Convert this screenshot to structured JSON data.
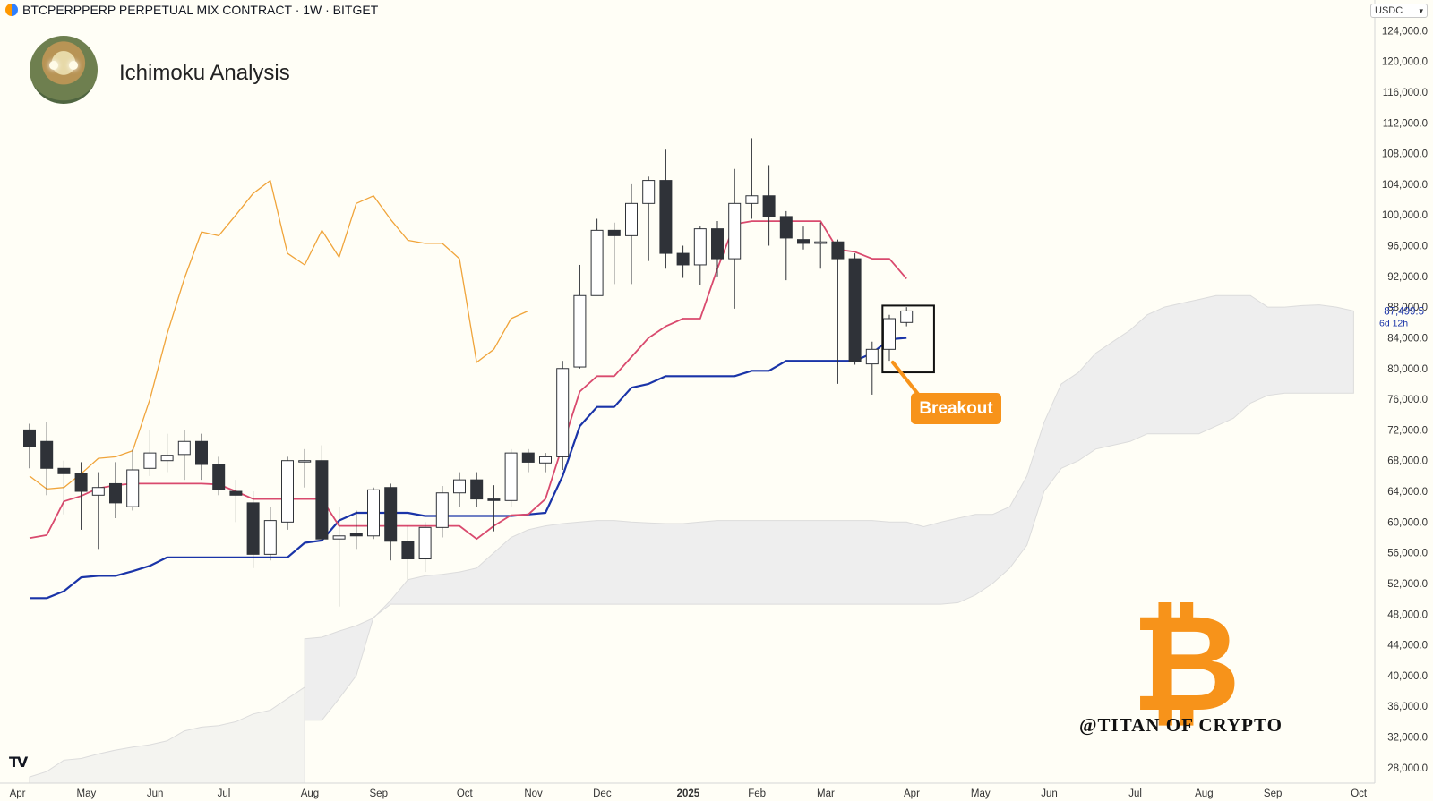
{
  "header": {
    "symbol_line": "BTCPERPPERP PERPETUAL MIX CONTRACT · 1W · BITGET",
    "chart_title": "Ichimoku Analysis",
    "currency": "USDC"
  },
  "annotations": {
    "breakout_label": "Breakout",
    "watermark": "@TITAN OF CRYPTO",
    "tradingview_logo": "TV",
    "last_price": "87,499.5",
    "countdown": "6d 12h"
  },
  "colors": {
    "background": "#fffef6",
    "tenkan": "#d94a6e",
    "kijun": "#1a34a8",
    "chikou": "#f0a43a",
    "cloud": "#eeeeee",
    "candle_up": "#ffffff",
    "candle_down": "#2f3238",
    "accent": "#f7931a"
  },
  "chart_data": {
    "type": "candlestick",
    "timeframe": "1W",
    "ylim": [
      26000,
      128000
    ],
    "y_ticks": [
      28000,
      32000,
      36000,
      40000,
      44000,
      48000,
      52000,
      56000,
      60000,
      64000,
      68000,
      72000,
      76000,
      80000,
      84000,
      88000,
      92000,
      96000,
      100000,
      104000,
      108000,
      112000,
      116000,
      120000,
      124000
    ],
    "y_tick_labels": [
      "28,000.0",
      "32,000.0",
      "36,000.0",
      "40,000.0",
      "44,000.0",
      "48,000.0",
      "52,000.0",
      "56,000.0",
      "60,000.0",
      "64,000.0",
      "68,000.0",
      "72,000.0",
      "76,000.0",
      "80,000.0",
      "84,000.0",
      "88,000.0",
      "92,000.0",
      "96,000.0",
      "100,000.0",
      "104,000.0",
      "108,000.0",
      "112,000.0",
      "116,000.0",
      "120,000.0",
      "124,000.0"
    ],
    "x_labels": [
      {
        "label": "Apr",
        "w": 0
      },
      {
        "label": "May",
        "w": 4
      },
      {
        "label": "Jun",
        "w": 8
      },
      {
        "label": "Jul",
        "w": 12
      },
      {
        "label": "Aug",
        "w": 17
      },
      {
        "label": "Sep",
        "w": 21
      },
      {
        "label": "Oct",
        "w": 26
      },
      {
        "label": "Nov",
        "w": 30
      },
      {
        "label": "Dec",
        "w": 34
      },
      {
        "label": "2025",
        "w": 39,
        "bold": true
      },
      {
        "label": "Feb",
        "w": 43
      },
      {
        "label": "Mar",
        "w": 47
      },
      {
        "label": "Apr",
        "w": 52
      },
      {
        "label": "May",
        "w": 56
      },
      {
        "label": "Jun",
        "w": 60
      },
      {
        "label": "Jul",
        "w": 65
      },
      {
        "label": "Aug",
        "w": 69
      },
      {
        "label": "Sep",
        "w": 73
      },
      {
        "label": "Oct",
        "w": 78
      }
    ],
    "candles": [
      {
        "o": 72000,
        "h": 72800,
        "l": 67000,
        "c": 69800
      },
      {
        "o": 70500,
        "h": 73000,
        "l": 63500,
        "c": 67000
      },
      {
        "o": 67000,
        "h": 68000,
        "l": 61000,
        "c": 66300
      },
      {
        "o": 66300,
        "h": 67800,
        "l": 59000,
        "c": 64000
      },
      {
        "o": 63500,
        "h": 66500,
        "l": 56500,
        "c": 64500
      },
      {
        "o": 65000,
        "h": 67800,
        "l": 60500,
        "c": 62500
      },
      {
        "o": 62000,
        "h": 69500,
        "l": 61500,
        "c": 66800
      },
      {
        "o": 67000,
        "h": 72000,
        "l": 66000,
        "c": 69000
      },
      {
        "o": 68000,
        "h": 71500,
        "l": 66500,
        "c": 68700
      },
      {
        "o": 68800,
        "h": 72000,
        "l": 65500,
        "c": 70500
      },
      {
        "o": 70500,
        "h": 71500,
        "l": 65500,
        "c": 67500
      },
      {
        "o": 67500,
        "h": 68500,
        "l": 63500,
        "c": 64200
      },
      {
        "o": 64000,
        "h": 65500,
        "l": 60000,
        "c": 63500
      },
      {
        "o": 62500,
        "h": 64000,
        "l": 54000,
        "c": 55800
      },
      {
        "o": 55800,
        "h": 62000,
        "l": 55000,
        "c": 60200
      },
      {
        "o": 60000,
        "h": 68500,
        "l": 59000,
        "c": 68000
      },
      {
        "o": 68000,
        "h": 69500,
        "l": 64500,
        "c": 68000
      },
      {
        "o": 68000,
        "h": 70000,
        "l": 57500,
        "c": 57800
      },
      {
        "o": 57800,
        "h": 62000,
        "l": 49000,
        "c": 58200
      },
      {
        "o": 58500,
        "h": 61500,
        "l": 56500,
        "c": 58200
      },
      {
        "o": 58200,
        "h": 64500,
        "l": 57800,
        "c": 64200
      },
      {
        "o": 64500,
        "h": 65000,
        "l": 55000,
        "c": 57500
      },
      {
        "o": 57500,
        "h": 59500,
        "l": 52500,
        "c": 55200
      },
      {
        "o": 55200,
        "h": 60000,
        "l": 53500,
        "c": 59300
      },
      {
        "o": 59300,
        "h": 64700,
        "l": 58000,
        "c": 63800
      },
      {
        "o": 63800,
        "h": 66500,
        "l": 62000,
        "c": 65500
      },
      {
        "o": 65500,
        "h": 66500,
        "l": 62000,
        "c": 63000
      },
      {
        "o": 63000,
        "h": 64800,
        "l": 58800,
        "c": 62800
      },
      {
        "o": 62800,
        "h": 69500,
        "l": 62000,
        "c": 69000
      },
      {
        "o": 69000,
        "h": 69500,
        "l": 66500,
        "c": 67800
      },
      {
        "o": 67700,
        "h": 69000,
        "l": 66500,
        "c": 68500
      },
      {
        "o": 68500,
        "h": 81000,
        "l": 66800,
        "c": 80000
      },
      {
        "o": 80200,
        "h": 93500,
        "l": 80000,
        "c": 89500
      },
      {
        "o": 89500,
        "h": 99500,
        "l": 90200,
        "c": 98000
      },
      {
        "o": 98000,
        "h": 99000,
        "l": 91000,
        "c": 97300
      },
      {
        "o": 97300,
        "h": 104000,
        "l": 91000,
        "c": 101500
      },
      {
        "o": 101500,
        "h": 105000,
        "l": 94000,
        "c": 104500
      },
      {
        "o": 104500,
        "h": 108500,
        "l": 93000,
        "c": 95000
      },
      {
        "o": 95000,
        "h": 96000,
        "l": 91800,
        "c": 93500
      },
      {
        "o": 93500,
        "h": 98500,
        "l": 90900,
        "c": 98200
      },
      {
        "o": 98200,
        "h": 99200,
        "l": 92000,
        "c": 94300
      },
      {
        "o": 94300,
        "h": 106000,
        "l": 87800,
        "c": 101500
      },
      {
        "o": 101500,
        "h": 110000,
        "l": 99500,
        "c": 102500
      },
      {
        "o": 102500,
        "h": 106500,
        "l": 96000,
        "c": 99800
      },
      {
        "o": 99800,
        "h": 100500,
        "l": 91500,
        "c": 97000
      },
      {
        "o": 96800,
        "h": 98500,
        "l": 95500,
        "c": 96300
      },
      {
        "o": 96300,
        "h": 99000,
        "l": 93000,
        "c": 96500
      },
      {
        "o": 96500,
        "h": 96800,
        "l": 78000,
        "c": 94300
      },
      {
        "o": 94300,
        "h": 95000,
        "l": 80500,
        "c": 80900
      },
      {
        "o": 80600,
        "h": 83500,
        "l": 76600,
        "c": 82500
      },
      {
        "o": 82500,
        "h": 87000,
        "l": 81000,
        "c": 86500
      },
      {
        "o": 86000,
        "h": 88000,
        "l": 85500,
        "c": 87500
      }
    ],
    "tenkan": [
      [
        0,
        57900
      ],
      [
        1,
        58300
      ],
      [
        2,
        62700
      ],
      [
        3,
        63400
      ],
      [
        4,
        64400
      ],
      [
        5,
        64800
      ],
      [
        6,
        65000
      ],
      [
        7,
        65000
      ],
      [
        8,
        65000
      ],
      [
        9,
        65000
      ],
      [
        10,
        65000
      ],
      [
        11,
        64900
      ],
      [
        12,
        64000
      ],
      [
        13,
        63000
      ],
      [
        14,
        63000
      ],
      [
        15,
        63000
      ],
      [
        16,
        63000
      ],
      [
        17,
        63000
      ],
      [
        18,
        59500
      ],
      [
        19,
        59500
      ],
      [
        20,
        59500
      ],
      [
        21,
        59500
      ],
      [
        22,
        59500
      ],
      [
        23,
        59500
      ],
      [
        24,
        59500
      ],
      [
        25,
        59500
      ],
      [
        26,
        57800
      ],
      [
        27,
        59500
      ],
      [
        28,
        60900
      ],
      [
        29,
        61000
      ],
      [
        30,
        63000
      ],
      [
        31,
        70000
      ],
      [
        32,
        77000
      ],
      [
        33,
        79000
      ],
      [
        34,
        79000
      ],
      [
        35,
        81500
      ],
      [
        36,
        84000
      ],
      [
        37,
        85500
      ],
      [
        38,
        86500
      ],
      [
        39,
        86500
      ],
      [
        40,
        93000
      ],
      [
        41,
        98800
      ],
      [
        42,
        99200
      ],
      [
        43,
        99200
      ],
      [
        44,
        99200
      ],
      [
        45,
        99200
      ],
      [
        46,
        99200
      ],
      [
        47,
        95500
      ],
      [
        48,
        95200
      ],
      [
        49,
        94300
      ],
      [
        50,
        94300
      ],
      [
        51,
        91700
      ]
    ],
    "kijun": [
      [
        0,
        50100
      ],
      [
        1,
        50100
      ],
      [
        2,
        51000
      ],
      [
        3,
        52800
      ],
      [
        4,
        53000
      ],
      [
        5,
        53000
      ],
      [
        6,
        53600
      ],
      [
        7,
        54300
      ],
      [
        8,
        55400
      ],
      [
        9,
        55400
      ],
      [
        10,
        55400
      ],
      [
        11,
        55400
      ],
      [
        12,
        55400
      ],
      [
        13,
        55400
      ],
      [
        14,
        55400
      ],
      [
        15,
        55400
      ],
      [
        16,
        57300
      ],
      [
        17,
        57600
      ],
      [
        18,
        60200
      ],
      [
        19,
        61200
      ],
      [
        20,
        61200
      ],
      [
        21,
        61200
      ],
      [
        22,
        61200
      ],
      [
        23,
        60800
      ],
      [
        24,
        60800
      ],
      [
        25,
        60800
      ],
      [
        26,
        60800
      ],
      [
        27,
        60800
      ],
      [
        28,
        60800
      ],
      [
        29,
        61000
      ],
      [
        30,
        61200
      ],
      [
        31,
        66000
      ],
      [
        32,
        72500
      ],
      [
        33,
        75000
      ],
      [
        34,
        75000
      ],
      [
        35,
        77500
      ],
      [
        36,
        78000
      ],
      [
        37,
        79000
      ],
      [
        38,
        79000
      ],
      [
        39,
        79000
      ],
      [
        40,
        79000
      ],
      [
        41,
        79000
      ],
      [
        42,
        79700
      ],
      [
        43,
        79700
      ],
      [
        44,
        81000
      ],
      [
        45,
        81000
      ],
      [
        46,
        81000
      ],
      [
        47,
        81000
      ],
      [
        48,
        81000
      ],
      [
        49,
        82000
      ],
      [
        50,
        83800
      ],
      [
        51,
        84000
      ]
    ],
    "chikou": [
      [
        0,
        66000
      ],
      [
        1,
        64300
      ],
      [
        2,
        64500
      ],
      [
        3,
        66300
      ],
      [
        4,
        68300
      ],
      [
        5,
        68500
      ],
      [
        6,
        69300
      ],
      [
        7,
        76000
      ],
      [
        8,
        84500
      ],
      [
        9,
        91700
      ],
      [
        10,
        97800
      ],
      [
        11,
        97300
      ],
      [
        12,
        100000
      ],
      [
        13,
        102800
      ],
      [
        14,
        104500
      ],
      [
        15,
        95000
      ],
      [
        16,
        93500
      ],
      [
        17,
        98000
      ],
      [
        18,
        94500
      ],
      [
        19,
        101500
      ],
      [
        20,
        102500
      ],
      [
        21,
        99400
      ],
      [
        22,
        96700
      ],
      [
        23,
        96300
      ],
      [
        24,
        96300
      ],
      [
        25,
        94300
      ],
      [
        26,
        80800
      ],
      [
        27,
        82500
      ],
      [
        28,
        86500
      ],
      [
        29,
        87500
      ]
    ],
    "cloud_top": [
      [
        16,
        44800
      ],
      [
        17,
        45000
      ],
      [
        18,
        45800
      ],
      [
        19,
        46500
      ],
      [
        20,
        47500
      ],
      [
        21,
        49800
      ],
      [
        22,
        52500
      ],
      [
        23,
        53000
      ],
      [
        24,
        53200
      ],
      [
        25,
        53500
      ],
      [
        26,
        54000
      ],
      [
        27,
        56000
      ],
      [
        28,
        58000
      ],
      [
        29,
        59000
      ],
      [
        30,
        59500
      ],
      [
        31,
        59800
      ],
      [
        32,
        60000
      ],
      [
        33,
        60200
      ],
      [
        34,
        60200
      ],
      [
        35,
        60000
      ],
      [
        36,
        59900
      ],
      [
        37,
        59800
      ],
      [
        38,
        59800
      ],
      [
        39,
        60000
      ],
      [
        40,
        60200
      ],
      [
        41,
        60200
      ],
      [
        42,
        60200
      ],
      [
        43,
        60200
      ],
      [
        44,
        60200
      ],
      [
        45,
        60200
      ],
      [
        46,
        60200
      ],
      [
        47,
        60200
      ],
      [
        48,
        60200
      ],
      [
        49,
        60200
      ],
      [
        50,
        60000
      ],
      [
        51,
        60000
      ],
      [
        52,
        59400
      ],
      [
        53,
        60000
      ],
      [
        54,
        60500
      ],
      [
        55,
        61000
      ],
      [
        56,
        61000
      ],
      [
        57,
        62000
      ],
      [
        58,
        66000
      ],
      [
        59,
        73000
      ],
      [
        60,
        78000
      ],
      [
        61,
        79500
      ],
      [
        62,
        82000
      ],
      [
        63,
        83500
      ],
      [
        64,
        85000
      ],
      [
        65,
        87000
      ],
      [
        66,
        88000
      ],
      [
        67,
        88500
      ],
      [
        68,
        89000
      ],
      [
        69,
        89500
      ],
      [
        70,
        89500
      ],
      [
        71,
        89500
      ],
      [
        72,
        88000
      ],
      [
        73,
        88000
      ],
      [
        74,
        88200
      ],
      [
        75,
        88300
      ],
      [
        76,
        88000
      ],
      [
        77,
        87500
      ]
    ],
    "cloud_bottom": [
      [
        16,
        34200
      ],
      [
        17,
        34200
      ],
      [
        18,
        37000
      ],
      [
        19,
        40000
      ],
      [
        20,
        47600
      ],
      [
        21,
        49300
      ],
      [
        22,
        49300
      ],
      [
        23,
        49300
      ],
      [
        24,
        49300
      ],
      [
        25,
        49300
      ],
      [
        26,
        49300
      ],
      [
        27,
        49300
      ],
      [
        28,
        49300
      ],
      [
        29,
        49300
      ],
      [
        30,
        49300
      ],
      [
        31,
        49300
      ],
      [
        32,
        49300
      ],
      [
        33,
        49300
      ],
      [
        34,
        49300
      ],
      [
        35,
        49300
      ],
      [
        36,
        49300
      ],
      [
        37,
        49300
      ],
      [
        38,
        49300
      ],
      [
        39,
        49300
      ],
      [
        40,
        49300
      ],
      [
        41,
        49300
      ],
      [
        42,
        49300
      ],
      [
        43,
        49300
      ],
      [
        44,
        49300
      ],
      [
        45,
        49300
      ],
      [
        46,
        49300
      ],
      [
        47,
        49300
      ],
      [
        48,
        49300
      ],
      [
        49,
        49300
      ],
      [
        50,
        49300
      ],
      [
        51,
        49300
      ],
      [
        52,
        49300
      ],
      [
        53,
        49300
      ],
      [
        54,
        49500
      ],
      [
        55,
        50500
      ],
      [
        56,
        52000
      ],
      [
        57,
        54000
      ],
      [
        58,
        57000
      ],
      [
        59,
        64000
      ],
      [
        60,
        67000
      ],
      [
        61,
        68000
      ],
      [
        62,
        69500
      ],
      [
        63,
        70000
      ],
      [
        64,
        70500
      ],
      [
        65,
        71500
      ],
      [
        66,
        71500
      ],
      [
        67,
        71500
      ],
      [
        68,
        71500
      ],
      [
        69,
        72500
      ],
      [
        70,
        73500
      ],
      [
        71,
        75500
      ],
      [
        72,
        76500
      ],
      [
        73,
        76800
      ],
      [
        74,
        76800
      ],
      [
        75,
        76800
      ],
      [
        76,
        76800
      ],
      [
        77,
        76800
      ]
    ],
    "cloud_left_tail_top": [
      [
        0,
        26800
      ],
      [
        1,
        27500
      ],
      [
        2,
        29000
      ],
      [
        3,
        29200
      ],
      [
        4,
        29800
      ],
      [
        5,
        30300
      ],
      [
        6,
        30700
      ],
      [
        7,
        31000
      ],
      [
        8,
        31500
      ],
      [
        9,
        32800
      ],
      [
        10,
        33300
      ],
      [
        11,
        33500
      ],
      [
        12,
        34000
      ],
      [
        13,
        35000
      ],
      [
        14,
        35500
      ],
      [
        15,
        37000
      ],
      [
        16,
        38500
      ]
    ],
    "breakout_box": {
      "w0": 49.6,
      "w1": 52.6,
      "top": 88200,
      "bottom": 79500
    },
    "last_price": 87499.5
  }
}
